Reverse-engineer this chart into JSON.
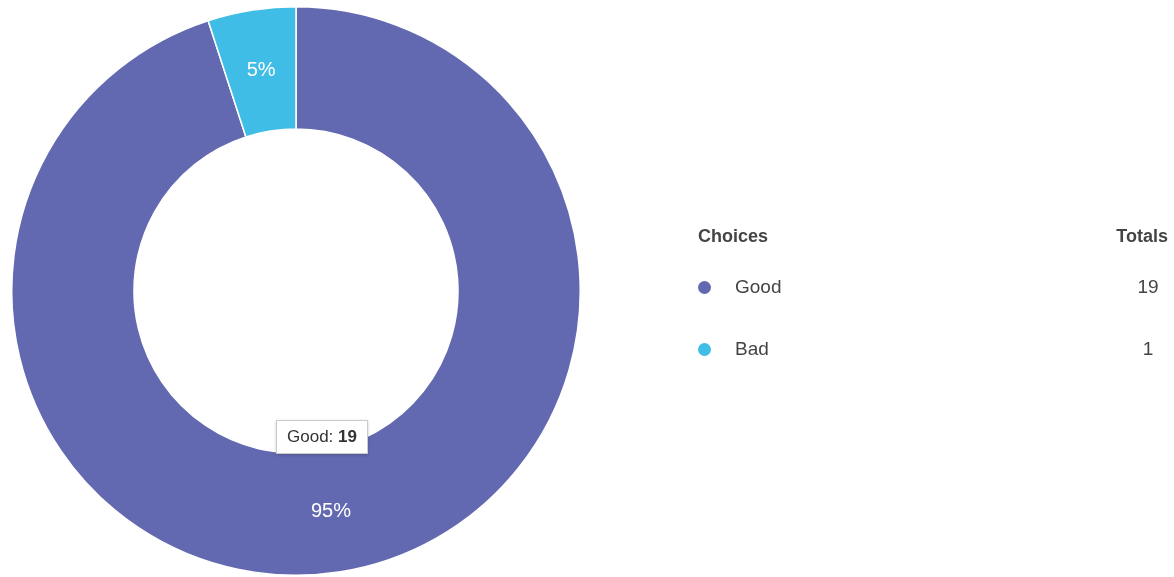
{
  "chart_data": {
    "type": "donut",
    "legend_title": "Choices",
    "legend": "right",
    "data_labels": true,
    "categories": [
      "Good",
      "Bad"
    ],
    "values": [
      95,
      5
    ],
    "totals": [
      "19",
      "1"
    ],
    "colors": [
      "#6369b0",
      "#3fbde6"
    ],
    "value_labels": [
      "95%",
      "5%"
    ],
    "annotations": [
      "Totals",
      "Good: 19"
    ]
  }
}
